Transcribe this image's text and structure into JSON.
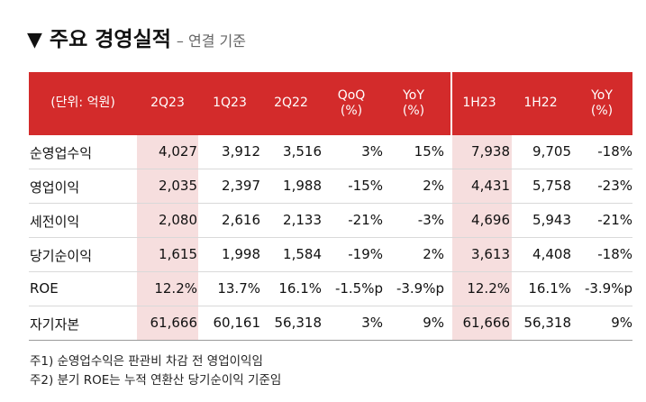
{
  "title": {
    "marker": "▼",
    "main": "주요 경영실적",
    "sub": "– 연결 기준"
  },
  "table": {
    "headers": [
      "(단위: 억원)",
      "2Q23",
      "1Q23",
      "2Q22",
      "QoQ\n(%)",
      "YoY\n(%)",
      "1H23",
      "1H22",
      "YoY\n(%)"
    ],
    "rows": [
      {
        "label": "순영업수익",
        "values": [
          "4,027",
          "3,912",
          "3,516",
          "3%",
          "15%",
          "7,938",
          "9,705",
          "-18%"
        ]
      },
      {
        "label": "영업이익",
        "values": [
          "2,035",
          "2,397",
          "1,988",
          "-15%",
          "2%",
          "4,431",
          "5,758",
          "-23%"
        ]
      },
      {
        "label": "세전이익",
        "values": [
          "2,080",
          "2,616",
          "2,133",
          "-21%",
          "-3%",
          "4,696",
          "5,943",
          "-21%"
        ]
      },
      {
        "label": "당기순이익",
        "values": [
          "1,615",
          "1,998",
          "1,584",
          "-19%",
          "2%",
          "3,613",
          "4,408",
          "-18%"
        ]
      },
      {
        "label": "ROE",
        "values": [
          "12.2%",
          "13.7%",
          "16.1%",
          "-1.5%p",
          "-3.9%p",
          "12.2%",
          "16.1%",
          "-3.9%p"
        ]
      },
      {
        "label": "자기자본",
        "values": [
          "61,666",
          "60,161",
          "56,318",
          "3%",
          "9%",
          "61,666",
          "56,318",
          "9%"
        ]
      }
    ]
  },
  "notes": [
    "주1) 순영업수익은 판관비 차감 전 영업이익임",
    "주2) 분기 ROE는 누적 연환산 당기순이익 기준임"
  ],
  "colors": {
    "header_red": "#d32b2b",
    "highlight_pink": "#f6dede"
  }
}
